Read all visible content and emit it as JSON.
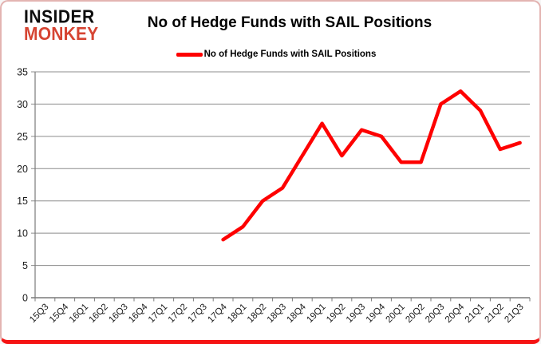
{
  "logo": {
    "line1": "INSIDER",
    "line2": "MONKEY"
  },
  "title": "No of Hedge Funds with SAIL Positions",
  "legend": {
    "label": "No of Hedge Funds with SAIL Positions"
  },
  "colors": {
    "line": "#fe0000",
    "grid": "#8c8c8c",
    "axis": "#7a7a7a",
    "tick_text": "#1a1a1a",
    "logo_black": "#0d0d0d",
    "logo_red": "#d64432",
    "border": "#e3b4b2",
    "border_bottom": "#f51313"
  },
  "chart_data": {
    "type": "line",
    "title": "No of Hedge Funds with SAIL Positions",
    "categories": [
      "15Q3",
      "15Q4",
      "16Q1",
      "16Q2",
      "16Q3",
      "16Q4",
      "17Q1",
      "17Q2",
      "17Q3",
      "17Q4",
      "18Q1",
      "18Q2",
      "18Q3",
      "18Q4",
      "19Q1",
      "19Q2",
      "19Q3",
      "19Q4",
      "20Q1",
      "20Q2",
      "20Q3",
      "20Q4",
      "21Q1",
      "21Q2",
      "21Q3"
    ],
    "series": [
      {
        "name": "No of Hedge Funds with SAIL Positions",
        "color": "#fe0000",
        "values": [
          null,
          null,
          null,
          null,
          null,
          null,
          null,
          null,
          null,
          9,
          11,
          15,
          17,
          22,
          27,
          22,
          26,
          25,
          21,
          21,
          30,
          32,
          29,
          23,
          24
        ]
      }
    ],
    "ylim": [
      0,
      35
    ],
    "yticks": [
      0,
      5,
      10,
      15,
      20,
      25,
      30,
      35
    ],
    "grid": true,
    "legend_position": "top",
    "x_label_rotation": -45
  }
}
